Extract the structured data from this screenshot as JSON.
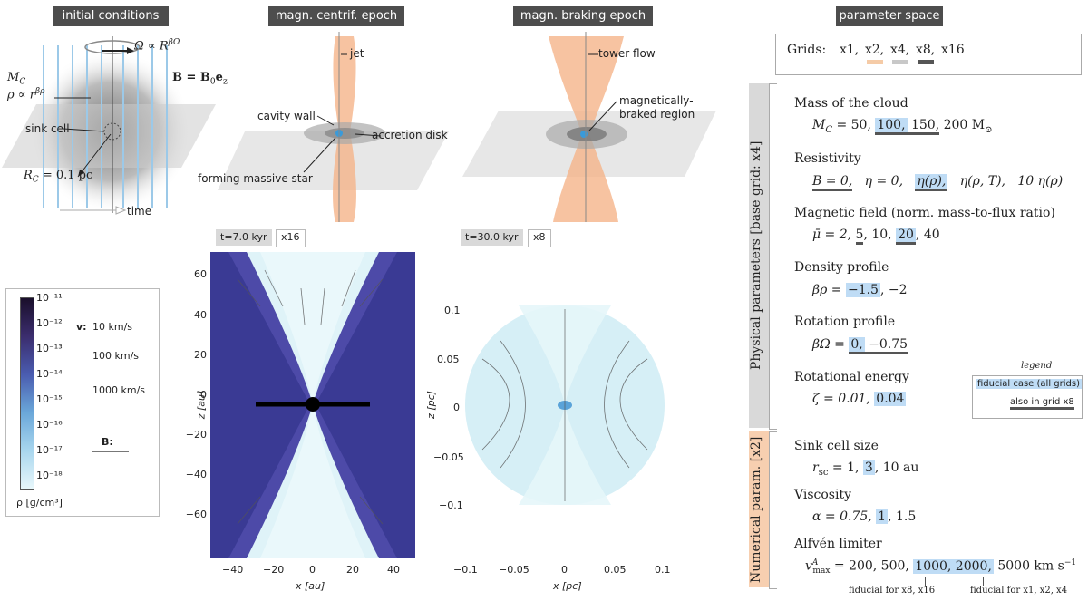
{
  "headers": {
    "initial": "initial conditions",
    "centrif": "magn. centrif. epoch",
    "braking": "magn. braking epoch",
    "param": "parameter space"
  },
  "initial": {
    "omega": "Ω ∝ R",
    "omega_exp": "βΩ",
    "bfield": "B = B",
    "bfield_sub": "0",
    "bfield_e": "e",
    "bfield_esub": "z",
    "mc": "M",
    "mc_sub": "C",
    "rho": "ρ ∝ r",
    "rho_exp": "βρ",
    "sink": "sink cell",
    "rc": "R",
    "rc_sub": "C",
    "rc_val": " = 0.1 pc",
    "time": "time"
  },
  "centrif": {
    "jet": "jet",
    "cavity": "cavity wall",
    "disk": "accretion disk",
    "star": "forming massive star",
    "time_tag": "t=7.0 kyr",
    "grid_tag": "x16",
    "yticks": [
      "60",
      "40",
      "20",
      "0",
      "−20",
      "−40",
      "−60"
    ],
    "xticks": [
      "−40",
      "−20",
      "0",
      "20",
      "40"
    ],
    "xlabel": "x [au]",
    "ylabel": "z [au]"
  },
  "braking": {
    "tower": "tower flow",
    "braked1": "magnetically-",
    "braked2": "braked region",
    "time_tag": "t=30.0 kyr",
    "grid_tag": "x8",
    "yticks": [
      "0.1",
      "0.05",
      "0",
      "−0.05",
      "−0.1"
    ],
    "xticks": [
      "−0.1",
      "−0.05",
      "0",
      "0.05",
      "0.1"
    ],
    "xlabel": "x [pc]",
    "ylabel": "z [pc]"
  },
  "colorbar": {
    "ticks": [
      "10⁻¹¹",
      "10⁻¹²",
      "10⁻¹³",
      "10⁻¹⁴",
      "10⁻¹⁵",
      "10⁻¹⁶",
      "10⁻¹⁷",
      "10⁻¹⁸"
    ],
    "unit": "ρ [g/cm³]",
    "v_label": "v:",
    "v1": "10 km/s",
    "v2": "100 km/s",
    "v3": "1000 km/s",
    "b_label": "B:"
  },
  "params": {
    "grids_label": "Grids:",
    "grids": [
      "x1,",
      "x2,",
      "x4,",
      "x8,",
      "x16"
    ],
    "phys_title": "Physical parameters [base grid: x4]",
    "num_title": "Numerical param. [x2]",
    "mass_title": "Mass of the cloud",
    "mass_pre": "M",
    "mass_sub": "C",
    "mass_v1": " = 50, ",
    "mass_v2": "100,",
    "mass_v3": " 150,",
    "mass_v4": " 200 M",
    "mass_v4sub": "⊙",
    "res_title": "Resistivity",
    "res_v1": "B = 0,",
    "res_v2": "η = 0,",
    "res_v3": "η(ρ),",
    "res_v4": "η(ρ, T),",
    "res_v5": "10 η(ρ)",
    "mag_title": "Magnetic field (norm. mass-to-flux ratio)",
    "mag_pre": "μ̄ = 2, ",
    "mag_v1": "5",
    "mag_v2": ", 10, ",
    "mag_v3": "20",
    "mag_v4": ", 40",
    "dens_title": "Density profile",
    "dens_pre": "βρ = ",
    "dens_v1": "−1.5",
    "dens_v2": ", −2",
    "rot_title": "Rotation profile",
    "rot_pre": "βΩ = ",
    "rot_v1": "0,",
    "rot_v2": " −0.75",
    "rote_title": "Rotational energy",
    "rote_pre": "ζ = 0.01, ",
    "rote_v1": "0.04",
    "legend_title": "legend",
    "legend_fid": "fiducial case (all grids)",
    "legend_x8": "also in grid x8",
    "sink_title": "Sink cell size",
    "sink_pre": "r",
    "sink_sub": "sc",
    "sink_v0": " = 1, ",
    "sink_v1": "3",
    "sink_v2": ", 10 au",
    "visc_title": "Viscosity",
    "visc_pre": "α = 0.75, ",
    "visc_v1": "1",
    "visc_v2": ", 1.5",
    "alf_title": "Alfvén limiter",
    "alf_pre": "v",
    "alf_sup": "A",
    "alf_sub": "max",
    "alf_v0": " = 200, 500, ",
    "alf_v1": "1000, 2000,",
    "alf_v2": " 5000 km s",
    "alf_v2sup": "−1",
    "fid1": "fiducial for x8, x16",
    "fid2": "fiducial for x1, x2, x4"
  },
  "colors": {
    "header_bg": "#4d4d4d",
    "highlight": "#bfdcf5",
    "underline": "#555555",
    "x2": "#f5cba7",
    "x4": "#c8c8c8",
    "x8": "#555555",
    "num_bg": "#f7cfb0",
    "phys_bg": "#d9d9d9"
  }
}
